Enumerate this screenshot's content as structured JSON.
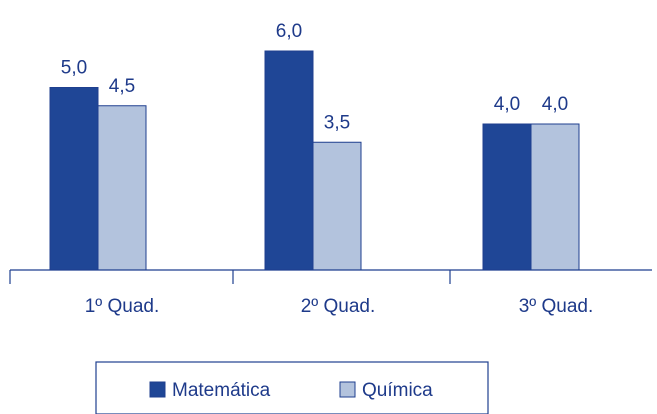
{
  "chart_data": {
    "type": "bar",
    "categories": [
      "1º Quad.",
      "2º Quad.",
      "3º Quad."
    ],
    "series": [
      {
        "name": "Matemática",
        "values": [
          5.0,
          6.0,
          4.0
        ],
        "value_labels": [
          "5,0",
          "6,0",
          "4,0"
        ],
        "color": "#1f4696"
      },
      {
        "name": "Química",
        "values": [
          4.5,
          3.5,
          4.0
        ],
        "value_labels": [
          "4,5",
          "3,5",
          "4,0"
        ],
        "color": "#b3c3dd"
      }
    ],
    "ylim": [
      0,
      7
    ],
    "grid": false,
    "legend_position": "bottom"
  }
}
